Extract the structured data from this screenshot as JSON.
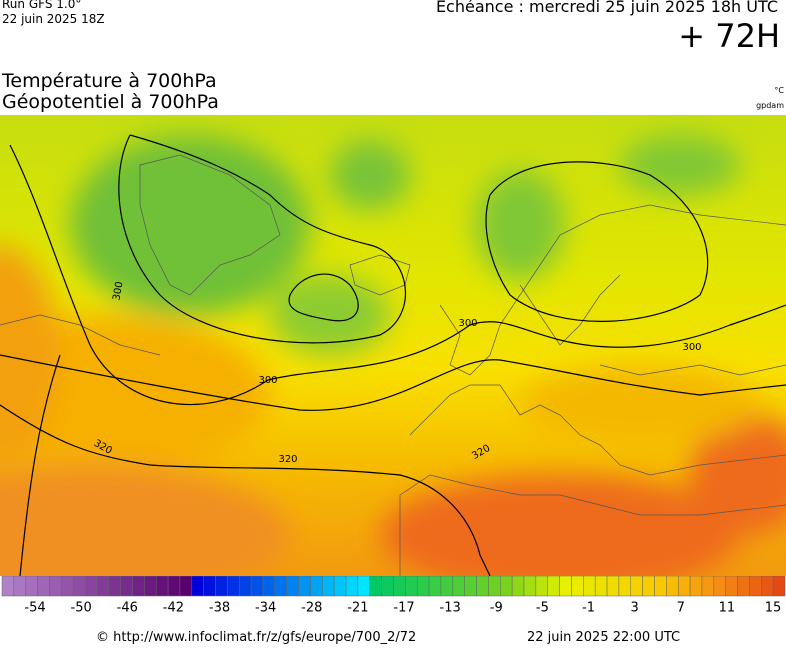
{
  "header": {
    "run": "Run GFS 1.0°",
    "run_date": "22 juin 2025 18Z",
    "valid": "Echéance : mercredi 25 juin 2025 18h UTC",
    "lead": "+ 72H"
  },
  "titles": {
    "temperature": "Température à 700hPa",
    "geopotential": "Géopotentiel à 700hPa",
    "temperature_unit": "°C",
    "geopotential_unit": "gpdam"
  },
  "map": {
    "contour_labels": [
      300,
      300,
      300,
      300,
      320,
      320,
      320
    ]
  },
  "scale": {
    "labels": [
      -54,
      -50,
      -46,
      -42,
      -38,
      -34,
      -28,
      -21,
      -17,
      -13,
      -9,
      -5,
      -1,
      3,
      7,
      11,
      15
    ]
  },
  "footer": {
    "url": "© http://www.infoclimat.fr/z/gfs/europe/700_2/72",
    "generated": "22 juin 2025 22:00 UTC"
  }
}
